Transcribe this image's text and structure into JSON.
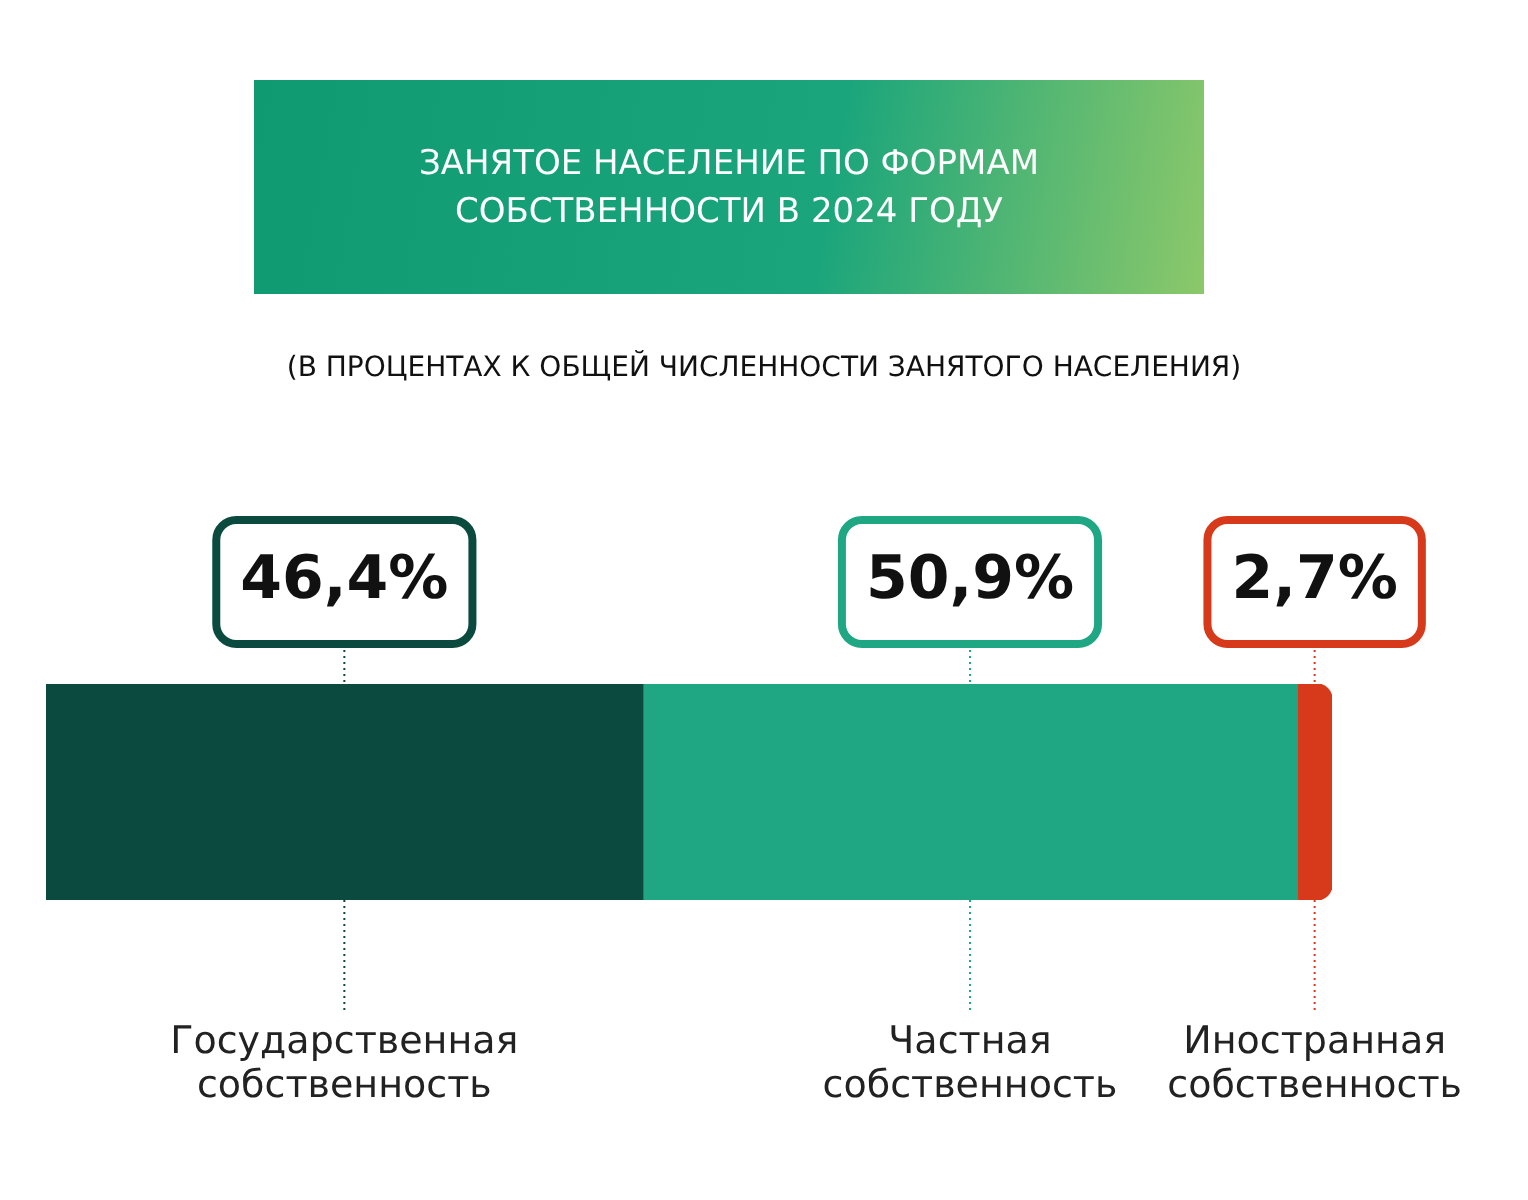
{
  "chart_data": {
    "type": "bar",
    "orientation": "horizontal",
    "stacked": true,
    "title": "ЗАНЯТОЕ НАСЕЛЕНИЕ ПО ФОРМАМ СОБСТВЕННОСТИ В 2024 ГОДУ",
    "subtitle": "(В ПРОЦЕНТАХ К ОБЩЕЙ ЧИСЛЕННОСТИ ЗАНЯТОГО НАСЕЛЕНИЯ)",
    "categories": [
      null
    ],
    "legend": false,
    "series": [
      {
        "name": "Государственная собственность",
        "color": "#0b4a3e",
        "values": [
          46.4
        ],
        "value_labels": [
          "46,4%"
        ]
      },
      {
        "name": "Частная собственность",
        "color": "#1fa784",
        "values": [
          50.9
        ],
        "value_labels": [
          "50,9%"
        ]
      },
      {
        "name": "Иностранная собственность",
        "color": "#d63a1a",
        "values": [
          2.7
        ],
        "value_labels": [
          "2,7%"
        ]
      }
    ]
  }
}
